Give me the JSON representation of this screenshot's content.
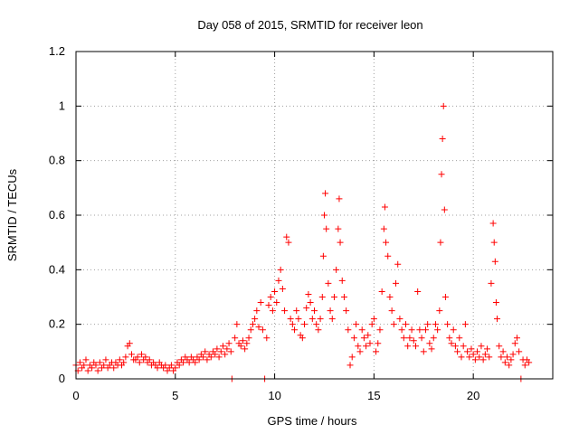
{
  "chart_data": {
    "type": "scatter",
    "title": "Day 058 of 2015, SRMTID for receiver leon",
    "xlabel": "GPS time / hours",
    "ylabel": "SRMTID / TECUs",
    "xlim": [
      0,
      24
    ],
    "ylim": [
      0,
      1.2
    ],
    "x_ticks": [
      0,
      5,
      10,
      15,
      20
    ],
    "x_tick_labels": [
      "0",
      "5",
      "10",
      "15",
      "20"
    ],
    "y_ticks": [
      0,
      0.2,
      0.4,
      0.6,
      0.8,
      1.0,
      1.2
    ],
    "y_tick_labels": [
      "0",
      "0.2",
      "0.4",
      "0.6",
      "0.8",
      "1",
      "1.2"
    ],
    "grid": true,
    "marker": "plus",
    "series": [
      {
        "name": "SRMTID",
        "color": "#ff0000",
        "points": [
          [
            0.0,
            0.05
          ],
          [
            0.1,
            0.03
          ],
          [
            0.2,
            0.06
          ],
          [
            0.3,
            0.04
          ],
          [
            0.4,
            0.05
          ],
          [
            0.5,
            0.07
          ],
          [
            0.6,
            0.03
          ],
          [
            0.7,
            0.05
          ],
          [
            0.8,
            0.04
          ],
          [
            0.9,
            0.06
          ],
          [
            1.0,
            0.05
          ],
          [
            1.1,
            0.03
          ],
          [
            1.2,
            0.06
          ],
          [
            1.3,
            0.04
          ],
          [
            1.4,
            0.05
          ],
          [
            1.5,
            0.07
          ],
          [
            1.6,
            0.04
          ],
          [
            1.7,
            0.05
          ],
          [
            1.8,
            0.06
          ],
          [
            1.9,
            0.04
          ],
          [
            2.0,
            0.06
          ],
          [
            2.1,
            0.05
          ],
          [
            2.2,
            0.07
          ],
          [
            2.3,
            0.05
          ],
          [
            2.4,
            0.06
          ],
          [
            2.5,
            0.08
          ],
          [
            2.6,
            0.12
          ],
          [
            2.7,
            0.13
          ],
          [
            2.8,
            0.09
          ],
          [
            2.9,
            0.07
          ],
          [
            3.0,
            0.07
          ],
          [
            3.1,
            0.08
          ],
          [
            3.2,
            0.06
          ],
          [
            3.3,
            0.09
          ],
          [
            3.4,
            0.07
          ],
          [
            3.5,
            0.08
          ],
          [
            3.6,
            0.06
          ],
          [
            3.7,
            0.07
          ],
          [
            3.8,
            0.05
          ],
          [
            3.9,
            0.06
          ],
          [
            4.0,
            0.05
          ],
          [
            4.1,
            0.04
          ],
          [
            4.2,
            0.06
          ],
          [
            4.3,
            0.05
          ],
          [
            4.4,
            0.04
          ],
          [
            4.5,
            0.05
          ],
          [
            4.6,
            0.03
          ],
          [
            4.7,
            0.04
          ],
          [
            4.8,
            0.05
          ],
          [
            4.9,
            0.03
          ],
          [
            5.0,
            0.04
          ],
          [
            5.1,
            0.06
          ],
          [
            5.2,
            0.05
          ],
          [
            5.3,
            0.07
          ],
          [
            5.4,
            0.06
          ],
          [
            5.5,
            0.08
          ],
          [
            5.6,
            0.07
          ],
          [
            5.7,
            0.06
          ],
          [
            5.8,
            0.08
          ],
          [
            5.9,
            0.07
          ],
          [
            6.0,
            0.06
          ],
          [
            6.1,
            0.08
          ],
          [
            6.2,
            0.07
          ],
          [
            6.3,
            0.09
          ],
          [
            6.4,
            0.08
          ],
          [
            6.5,
            0.1
          ],
          [
            6.6,
            0.07
          ],
          [
            6.7,
            0.09
          ],
          [
            6.8,
            0.08
          ],
          [
            6.9,
            0.1
          ],
          [
            7.0,
            0.09
          ],
          [
            7.1,
            0.11
          ],
          [
            7.2,
            0.08
          ],
          [
            7.3,
            0.1
          ],
          [
            7.4,
            0.12
          ],
          [
            7.5,
            0.09
          ],
          [
            7.6,
            0.11
          ],
          [
            7.7,
            0.13
          ],
          [
            7.8,
            0.1
          ],
          [
            7.85,
            0.0
          ],
          [
            8.0,
            0.15
          ],
          [
            8.1,
            0.2
          ],
          [
            8.2,
            0.13
          ],
          [
            8.3,
            0.12
          ],
          [
            8.4,
            0.14
          ],
          [
            8.5,
            0.11
          ],
          [
            8.6,
            0.13
          ],
          [
            8.7,
            0.15
          ],
          [
            8.8,
            0.18
          ],
          [
            8.9,
            0.2
          ],
          [
            9.0,
            0.22
          ],
          [
            9.1,
            0.25
          ],
          [
            9.2,
            0.19
          ],
          [
            9.3,
            0.28
          ],
          [
            9.4,
            0.18
          ],
          [
            9.5,
            0.0
          ],
          [
            9.6,
            0.15
          ],
          [
            9.7,
            0.27
          ],
          [
            9.8,
            0.3
          ],
          [
            9.9,
            0.25
          ],
          [
            10.0,
            0.32
          ],
          [
            10.1,
            0.28
          ],
          [
            10.2,
            0.36
          ],
          [
            10.3,
            0.4
          ],
          [
            10.4,
            0.33
          ],
          [
            10.5,
            0.25
          ],
          [
            10.6,
            0.52
          ],
          [
            10.7,
            0.5
          ],
          [
            10.8,
            0.22
          ],
          [
            10.9,
            0.2
          ],
          [
            11.0,
            0.18
          ],
          [
            11.1,
            0.25
          ],
          [
            11.2,
            0.22
          ],
          [
            11.3,
            0.16
          ],
          [
            11.4,
            0.15
          ],
          [
            11.5,
            0.2
          ],
          [
            11.6,
            0.26
          ],
          [
            11.7,
            0.31
          ],
          [
            11.8,
            0.28
          ],
          [
            11.9,
            0.22
          ],
          [
            12.0,
            0.25
          ],
          [
            12.1,
            0.2
          ],
          [
            12.2,
            0.18
          ],
          [
            12.3,
            0.22
          ],
          [
            12.4,
            0.3
          ],
          [
            12.45,
            0.45
          ],
          [
            12.5,
            0.6
          ],
          [
            12.55,
            0.68
          ],
          [
            12.6,
            0.55
          ],
          [
            12.7,
            0.35
          ],
          [
            12.8,
            0.25
          ],
          [
            12.9,
            0.22
          ],
          [
            13.0,
            0.3
          ],
          [
            13.1,
            0.4
          ],
          [
            13.2,
            0.55
          ],
          [
            13.25,
            0.66
          ],
          [
            13.3,
            0.5
          ],
          [
            13.4,
            0.36
          ],
          [
            13.5,
            0.3
          ],
          [
            13.6,
            0.25
          ],
          [
            13.7,
            0.18
          ],
          [
            13.8,
            0.05
          ],
          [
            13.9,
            0.08
          ],
          [
            14.0,
            0.15
          ],
          [
            14.1,
            0.2
          ],
          [
            14.2,
            0.12
          ],
          [
            14.3,
            0.1
          ],
          [
            14.4,
            0.18
          ],
          [
            14.5,
            0.15
          ],
          [
            14.6,
            0.12
          ],
          [
            14.7,
            0.16
          ],
          [
            14.8,
            0.13
          ],
          [
            14.9,
            0.2
          ],
          [
            15.0,
            0.22
          ],
          [
            15.1,
            0.1
          ],
          [
            15.2,
            0.13
          ],
          [
            15.3,
            0.18
          ],
          [
            15.4,
            0.32
          ],
          [
            15.5,
            0.55
          ],
          [
            15.55,
            0.63
          ],
          [
            15.6,
            0.5
          ],
          [
            15.7,
            0.45
          ],
          [
            15.8,
            0.3
          ],
          [
            15.9,
            0.25
          ],
          [
            16.0,
            0.2
          ],
          [
            16.1,
            0.35
          ],
          [
            16.2,
            0.42
          ],
          [
            16.3,
            0.22
          ],
          [
            16.4,
            0.18
          ],
          [
            16.5,
            0.15
          ],
          [
            16.6,
            0.2
          ],
          [
            16.7,
            0.12
          ],
          [
            16.8,
            0.15
          ],
          [
            16.9,
            0.18
          ],
          [
            17.0,
            0.14
          ],
          [
            17.1,
            0.12
          ],
          [
            17.2,
            0.32
          ],
          [
            17.3,
            0.18
          ],
          [
            17.4,
            0.15
          ],
          [
            17.5,
            0.1
          ],
          [
            17.6,
            0.18
          ],
          [
            17.7,
            0.2
          ],
          [
            17.8,
            0.13
          ],
          [
            17.9,
            0.11
          ],
          [
            18.0,
            0.15
          ],
          [
            18.1,
            0.2
          ],
          [
            18.2,
            0.18
          ],
          [
            18.3,
            0.25
          ],
          [
            18.35,
            0.5
          ],
          [
            18.4,
            0.75
          ],
          [
            18.45,
            0.88
          ],
          [
            18.5,
            1.0
          ],
          [
            18.55,
            0.62
          ],
          [
            18.6,
            0.3
          ],
          [
            18.7,
            0.2
          ],
          [
            18.8,
            0.15
          ],
          [
            18.9,
            0.13
          ],
          [
            19.0,
            0.18
          ],
          [
            19.1,
            0.12
          ],
          [
            19.2,
            0.1
          ],
          [
            19.3,
            0.15
          ],
          [
            19.4,
            0.08
          ],
          [
            19.5,
            0.12
          ],
          [
            19.6,
            0.2
          ],
          [
            19.7,
            0.1
          ],
          [
            19.8,
            0.08
          ],
          [
            19.9,
            0.11
          ],
          [
            20.0,
            0.09
          ],
          [
            20.1,
            0.07
          ],
          [
            20.2,
            0.1
          ],
          [
            20.3,
            0.08
          ],
          [
            20.4,
            0.12
          ],
          [
            20.5,
            0.07
          ],
          [
            20.6,
            0.09
          ],
          [
            20.7,
            0.11
          ],
          [
            20.8,
            0.08
          ],
          [
            20.9,
            0.35
          ],
          [
            21.0,
            0.57
          ],
          [
            21.05,
            0.5
          ],
          [
            21.1,
            0.43
          ],
          [
            21.15,
            0.28
          ],
          [
            21.2,
            0.22
          ],
          [
            21.3,
            0.12
          ],
          [
            21.4,
            0.08
          ],
          [
            21.5,
            0.1
          ],
          [
            21.6,
            0.06
          ],
          [
            21.7,
            0.08
          ],
          [
            21.8,
            0.05
          ],
          [
            21.9,
            0.07
          ],
          [
            22.0,
            0.09
          ],
          [
            22.1,
            0.13
          ],
          [
            22.2,
            0.15
          ],
          [
            22.3,
            0.1
          ],
          [
            22.4,
            0.0
          ],
          [
            22.5,
            0.07
          ],
          [
            22.6,
            0.05
          ],
          [
            22.7,
            0.07
          ],
          [
            22.8,
            0.06
          ]
        ]
      }
    ]
  }
}
